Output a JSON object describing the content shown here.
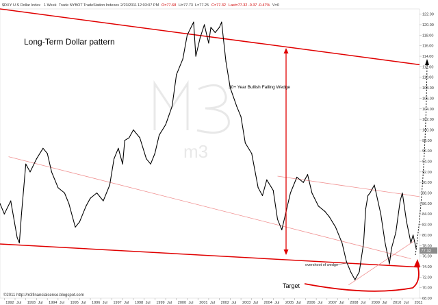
{
  "header": {
    "symbol": "$DXY",
    "description": "U.S Dollar Index",
    "interval": "1 Week",
    "source": "Trade NYBOT TradeStation Indexes",
    "date": "2/23/2011",
    "time": "12:03:07 PM",
    "open": "O=77.68",
    "high": "H=77.73",
    "low": "L=77.25",
    "close": "C=77.32",
    "last": "Last=77.32 -0.37 -0.47%",
    "volume": "V=0"
  },
  "chart_data": {
    "type": "line",
    "title": "Long-Term Dollar pattern",
    "last_price_label": "77.32",
    "y_ticks": [
      "122.00",
      "120.00",
      "118.00",
      "116.00",
      "114.00",
      "112.00",
      "110.00",
      "108.00",
      "106.00",
      "104.00",
      "102.00",
      "100.00",
      "98.00",
      "96.00",
      "94.00",
      "92.00",
      "90.00",
      "88.00",
      "86.00",
      "84.00",
      "82.00",
      "80.00",
      "78.00",
      "76.00",
      "74.00",
      "72.00",
      "70.00",
      "68.00"
    ],
    "x_ticks": [
      "1992",
      "Jul",
      "1993",
      "Jul",
      "1994",
      "Jul",
      "1995",
      "Jul",
      "1996",
      "Jul",
      "1997",
      "Jul",
      "1998",
      "Jul",
      "1999",
      "Jul",
      "2000",
      "Jul",
      "2001",
      "Jul",
      "2002",
      "Jul",
      "2003",
      "Jul",
      "2004",
      "Jul",
      "2005",
      "Jul",
      "2006",
      "Jul",
      "2007",
      "Jul",
      "2008",
      "Jul",
      "2009",
      "Jul",
      "2010",
      "Jul",
      "2011"
    ],
    "ylim": [
      68,
      123
    ],
    "xlim": [
      1991.8,
      2011.3
    ],
    "series": [
      {
        "x": [
          1991.8,
          1992.0,
          1992.3,
          1992.6,
          1992.7,
          1992.8,
          1993.0,
          1993.2,
          1993.5,
          1993.8,
          1994.0,
          1994.2,
          1994.5,
          1994.8,
          1995.0,
          1995.3,
          1995.5,
          1995.8,
          1996.0,
          1996.3,
          1996.6,
          1996.9,
          1997.1,
          1997.3,
          1997.5,
          1997.6,
          1997.8,
          1998.0,
          1998.3,
          1998.6,
          1998.8,
          1999.0,
          1999.2,
          1999.5,
          1999.8,
          2000.0,
          2000.3,
          2000.5,
          2000.8,
          2000.9,
          2001.1,
          2001.3,
          2001.5,
          2001.6,
          2001.8,
          2002.0,
          2002.1,
          2002.3,
          2002.5,
          2002.8,
          2003.0,
          2003.2,
          2003.5,
          2003.8,
          2004.0,
          2004.2,
          2004.5,
          2004.7,
          2004.9,
          2005.1,
          2005.3,
          2005.6,
          2005.9,
          2006.1,
          2006.3,
          2006.6,
          2006.9,
          2007.1,
          2007.4,
          2007.7,
          2007.9,
          2008.1,
          2008.3,
          2008.5,
          2008.7,
          2008.8,
          2008.9,
          2009.0,
          2009.2,
          2009.5,
          2009.7,
          2009.9,
          2010.0,
          2010.2,
          2010.4,
          2010.5,
          2010.7,
          2010.9,
          2011.0,
          2011.15
        ],
        "y": [
          86.0,
          84.0,
          86.5,
          79.5,
          78.5,
          84.0,
          93.5,
          92.0,
          94.5,
          96.5,
          95.5,
          92.0,
          89.0,
          88.0,
          86.0,
          81.5,
          82.5,
          85.5,
          87.0,
          88.0,
          86.5,
          89.5,
          94.5,
          96.5,
          93.5,
          98.0,
          98.5,
          100.0,
          98.5,
          94.5,
          93.5,
          95.5,
          99.0,
          101.0,
          104.5,
          110.5,
          113.5,
          118.0,
          120.5,
          114.0,
          117.5,
          120.0,
          116.5,
          119.5,
          118.5,
          119.5,
          120.5,
          113.0,
          108.0,
          104.5,
          102.5,
          97.5,
          95.5,
          89.0,
          87.5,
          90.5,
          88.5,
          83.0,
          81.0,
          84.5,
          88.0,
          91.0,
          90.0,
          91.5,
          88.0,
          85.5,
          84.5,
          83.5,
          81.5,
          78.5,
          75.0,
          73.0,
          71.5,
          73.0,
          78.5,
          85.0,
          87.5,
          88.0,
          89.5,
          84.0,
          78.5,
          74.5,
          77.5,
          80.5,
          86.5,
          88.0,
          82.5,
          78.5,
          80.0,
          77.32
        ]
      }
    ],
    "annotations": [
      "30+ Year Bullish Falling Wedge",
      "overshoot of wedge",
      "Target"
    ],
    "copyright": "©2011 http://m3financialsense.blogspot.com",
    "colors": {
      "price": "#000000",
      "trendline": "#e00000",
      "thin_trendline": "#f09090",
      "last_price_box": "#8a8a8a"
    }
  }
}
